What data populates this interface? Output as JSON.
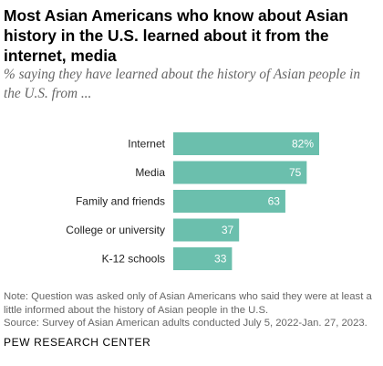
{
  "title": "Most Asian Americans who know about Asian history in the U.S. learned about it from the internet, media",
  "subtitle": "% saying they have learned about the history of Asian people in the U.S. from ...",
  "chart_data": {
    "type": "bar",
    "orientation": "horizontal",
    "categories": [
      "Internet",
      "Media",
      "Family and friends",
      "College or university",
      "K-12 schools"
    ],
    "values": [
      82,
      75,
      63,
      37,
      33
    ],
    "value_labels": [
      "82%",
      "75",
      "63",
      "37",
      "33"
    ],
    "xlim": [
      0,
      100
    ],
    "grid": false,
    "bar_color": "#6bbfad",
    "label_color": "#ffffff"
  },
  "note": {
    "line1": "Note: Question was asked only of Asian Americans who said they were at least a",
    "line2": "little informed about the history of Asian people in the U.S.",
    "source": "Source: Survey of Asian American adults conducted July 5, 2022-Jan. 27, 2023."
  },
  "logo": "PEW RESEARCH CENTER"
}
